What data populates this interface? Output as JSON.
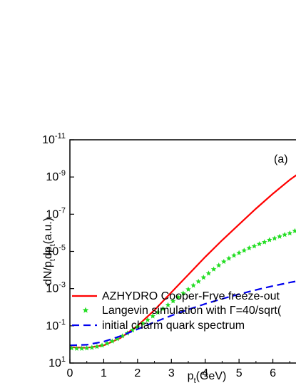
{
  "chart_data": {
    "type": "line",
    "panel_label": "(a)",
    "xlabel": "p_t(GeV)",
    "ylabel": "dN/p_t dp_t(a.u.)",
    "xlim": [
      0,
      7
    ],
    "ylim_log10": [
      -11,
      1
    ],
    "y_scale": "log",
    "x_ticks": [
      0,
      1,
      2,
      3,
      4,
      5,
      6
    ],
    "y_ticks_log10": [
      1,
      -1,
      -3,
      -5,
      -7,
      -9,
      -11
    ],
    "legend_placement": "bottom-left",
    "series": [
      {
        "name": "AZHYDRO Cooper-Frye freeze-out",
        "style": "solid",
        "color": "#ff0000",
        "x": [
          0,
          0.5,
          1.0,
          1.5,
          2.0,
          2.5,
          3.0,
          3.5,
          4.0,
          4.5,
          5.0,
          5.5,
          6.0,
          6.5,
          7.0
        ],
        "y_log10": [
          0.15,
          0.18,
          0.05,
          -0.35,
          -1.0,
          -1.85,
          -2.8,
          -3.75,
          -4.7,
          -5.6,
          -6.45,
          -7.3,
          -8.1,
          -8.85,
          -9.5
        ]
      },
      {
        "name": "Langevin simulation with Γ=40/sqrt(",
        "style": "stars",
        "color": "#22dd22",
        "x": [
          0.05,
          0.2,
          0.35,
          0.5,
          0.65,
          0.8,
          0.95,
          1.1,
          1.25,
          1.4,
          1.55,
          1.7,
          1.85,
          2.0,
          2.15,
          2.3,
          2.45,
          2.6,
          2.75,
          2.9,
          3.05,
          3.2,
          3.35,
          3.5,
          3.65,
          3.8,
          3.95,
          4.1,
          4.25,
          4.4,
          4.55,
          4.7,
          4.85,
          5.0,
          5.15,
          5.3,
          5.45,
          5.6,
          5.75,
          5.9,
          6.05,
          6.2,
          6.35,
          6.5,
          6.65
        ],
        "y_log10": [
          0.2,
          0.22,
          0.22,
          0.2,
          0.17,
          0.12,
          0.05,
          -0.05,
          -0.17,
          -0.3,
          -0.45,
          -0.6,
          -0.77,
          -0.95,
          -1.13,
          -1.32,
          -1.52,
          -1.72,
          -1.92,
          -2.12,
          -2.33,
          -2.54,
          -2.75,
          -2.96,
          -3.17,
          -3.38,
          -3.6,
          -3.82,
          -4.04,
          -4.25,
          -4.45,
          -4.62,
          -4.78,
          -4.92,
          -5.05,
          -5.18,
          -5.28,
          -5.4,
          -5.5,
          -5.62,
          -5.7,
          -5.8,
          -5.9,
          -5.98,
          -6.1
        ]
      },
      {
        "name": "initial charm quark spectrum",
        "style": "dashed",
        "color": "#0000ee",
        "x": [
          0,
          0.5,
          1.0,
          1.5,
          2.0,
          2.5,
          3.0,
          3.5,
          4.0,
          4.5,
          5.0,
          5.5,
          6.0,
          6.5,
          7.0
        ],
        "y_log10": [
          0.05,
          0.02,
          -0.15,
          -0.45,
          -0.82,
          -1.2,
          -1.55,
          -1.88,
          -2.18,
          -2.45,
          -2.7,
          -2.93,
          -3.14,
          -3.33,
          -3.5
        ]
      }
    ]
  }
}
